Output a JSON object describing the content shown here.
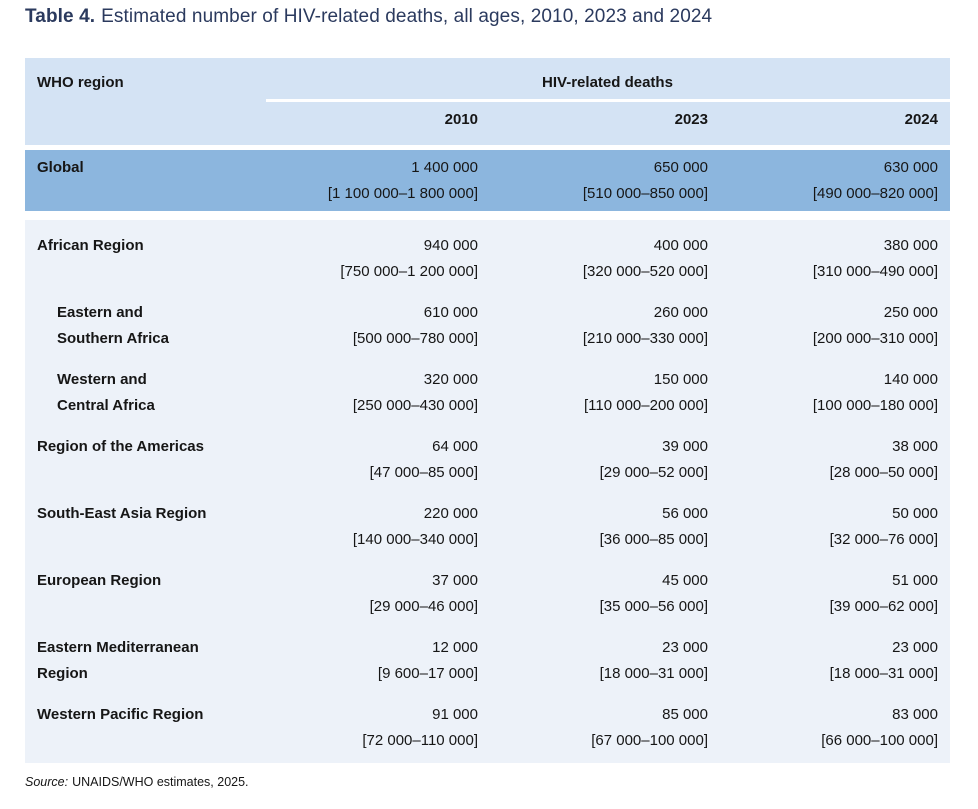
{
  "title": {
    "prefix": "Table 4.",
    "text": "Estimated number of HIV-related deaths, all ages, 2010, 2023 and 2024"
  },
  "table": {
    "region_header": "WHO region",
    "group_header": "HIV-related deaths",
    "year_headers": [
      "2010",
      "2023",
      "2024"
    ],
    "global_row": {
      "label": "Global",
      "values": [
        {
          "est": "1 400 000",
          "range": "[1 100 000–1 800 000]"
        },
        {
          "est": "650 000",
          "range": "[510 000–850 000]"
        },
        {
          "est": "630 000",
          "range": "[490 000–820 000]"
        }
      ]
    },
    "rows": [
      {
        "label": "African Region",
        "values": [
          {
            "est": "940 000",
            "range": "[750 000–1 200 000]"
          },
          {
            "est": "400 000",
            "range": "[320 000–520 000]"
          },
          {
            "est": "380 000",
            "range": "[310 000–490 000]"
          }
        ]
      },
      {
        "label": "Eastern and\nSouthern Africa",
        "values": [
          {
            "est": "610 000",
            "range": "[500 000–780 000]"
          },
          {
            "est": "260 000",
            "range": "[210 000–330 000]"
          },
          {
            "est": "250 000",
            "range": "[200 000–310 000]"
          }
        ]
      },
      {
        "label": "Western and\nCentral Africa",
        "values": [
          {
            "est": "320 000",
            "range": "[250 000–430 000]"
          },
          {
            "est": "150 000",
            "range": "[110 000–200 000]"
          },
          {
            "est": "140 000",
            "range": "[100 000–180 000]"
          }
        ]
      },
      {
        "label": "Region of the Americas",
        "values": [
          {
            "est": "64 000",
            "range": "[47 000–85 000]"
          },
          {
            "est": "39 000",
            "range": "[29 000–52 000]"
          },
          {
            "est": "38 000",
            "range": "[28 000–50 000]"
          }
        ]
      },
      {
        "label": "South-East Asia Region",
        "values": [
          {
            "est": "220 000",
            "range": "[140 000–340 000]"
          },
          {
            "est": "56 000",
            "range": "[36 000–85 000]"
          },
          {
            "est": "50 000",
            "range": "[32 000–76 000]"
          }
        ]
      },
      {
        "label": "European Region",
        "values": [
          {
            "est": "37 000",
            "range": "[29 000–46 000]"
          },
          {
            "est": "45 000",
            "range": "[35 000–56 000]"
          },
          {
            "est": "51 000",
            "range": "[39 000–62 000]"
          }
        ]
      },
      {
        "label": "Eastern Mediterranean\nRegion",
        "values": [
          {
            "est": "12 000",
            "range": "[9 600–17 000]"
          },
          {
            "est": "23 000",
            "range": "[18 000–31 000]"
          },
          {
            "est": "23 000",
            "range": "[18 000–31 000]"
          }
        ]
      },
      {
        "label": "Western Pacific Region",
        "values": [
          {
            "est": "91 000",
            "range": "[72 000–110 000]"
          },
          {
            "est": "85 000",
            "range": "[67 000–100 000]"
          },
          {
            "est": "83 000",
            "range": "[66 000–100 000]"
          }
        ]
      }
    ]
  },
  "footer": {
    "source_label": "Source:",
    "source_text": "UNAIDS/WHO estimates, 2025."
  },
  "colors": {
    "title": "#2b3a5e",
    "header_bg": "#d4e3f4",
    "global_row_bg": "#8cb6de",
    "body_bg": "#edf2f9",
    "text": "#161616"
  }
}
